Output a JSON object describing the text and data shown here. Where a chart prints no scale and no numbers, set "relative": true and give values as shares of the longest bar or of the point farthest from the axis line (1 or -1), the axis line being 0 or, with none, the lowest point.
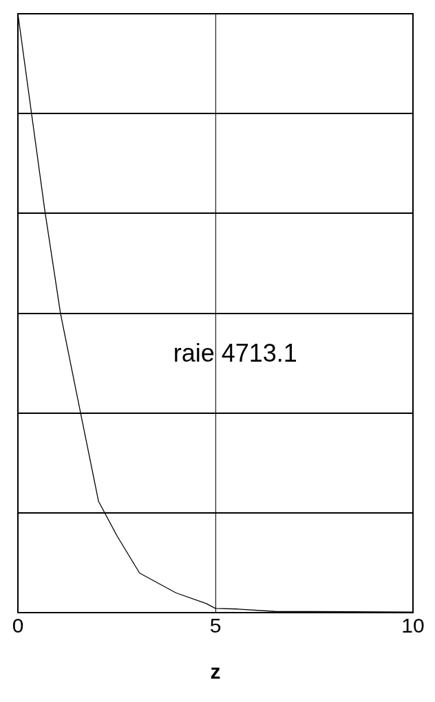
{
  "chart_data": {
    "type": "line",
    "xlabel": "z",
    "relative": true,
    "xlim": [
      0,
      10
    ],
    "xticks": [
      0,
      5,
      10
    ],
    "grid": true,
    "legend": false,
    "marker": "none",
    "line_style": "solid",
    "annotations": [
      "raie 4713.1"
    ],
    "series": [
      {
        "color": "#000000",
        "x": [
          0,
          0.68,
          1.08,
          1.6,
          2.04,
          2.51,
          3.08,
          4.0,
          4.77,
          5.0,
          5.56,
          6.5,
          10
        ],
        "values": [
          1,
          0.672,
          0.499,
          0.329,
          0.186,
          0.128,
          0.066,
          0.033,
          0.015,
          0.007,
          0.006,
          0.002,
          0.001
        ]
      }
    ]
  }
}
